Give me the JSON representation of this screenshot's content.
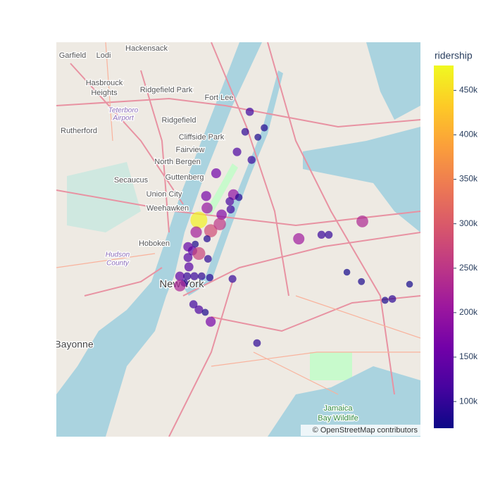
{
  "chart_data": {
    "type": "scattermapbox",
    "lonlim": [
      -74.144,
      -73.743
    ],
    "latlim": [
      40.596,
      40.891
    ],
    "lat": [
      40.839,
      40.827,
      40.824,
      40.82,
      40.809,
      40.803,
      40.793,
      40.777,
      40.776,
      40.775,
      40.772,
      40.767,
      40.766,
      40.762,
      40.758,
      40.75,
      40.755,
      40.749,
      40.744,
      40.74,
      40.738,
      40.735,
      40.733,
      40.729,
      40.73,
      40.723,
      40.716,
      40.716,
      40.716,
      40.716,
      40.715,
      40.711,
      40.709,
      40.714,
      40.695,
      40.691,
      40.689,
      40.682,
      40.666,
      40.744,
      40.747,
      40.747,
      40.757,
      40.719,
      40.712,
      40.71,
      40.698,
      40.699
    ],
    "lon": [
      -73.931,
      -73.915,
      -73.936,
      -73.922,
      -73.945,
      -73.929,
      -73.968,
      -73.949,
      -73.979,
      -73.943,
      -73.953,
      -73.978,
      -73.952,
      -73.962,
      -73.987,
      -73.974,
      -73.964,
      -73.99,
      -73.978,
      -73.991,
      -73.999,
      -73.994,
      -73.987,
      -73.977,
      -73.999,
      -73.998,
      -74.008,
      -74.0,
      -73.992,
      -73.984,
      -73.975,
      -74.003,
      -74.008,
      -73.95,
      -73.993,
      -73.987,
      -73.98,
      -73.974,
      -73.923,
      -73.877,
      -73.852,
      -73.844,
      -73.807,
      -73.824,
      -73.808,
      -73.755,
      -73.782,
      -73.774
    ],
    "values": [
      110000,
      85000,
      95000,
      80000,
      120000,
      105000,
      160000,
      190000,
      165000,
      90000,
      115000,
      200000,
      110000,
      175000,
      470000,
      280000,
      250000,
      215000,
      85000,
      80000,
      145000,
      140000,
      270000,
      95000,
      130000,
      135000,
      140000,
      100000,
      105000,
      95000,
      90000,
      95000,
      225000,
      100000,
      110000,
      120000,
      80000,
      165000,
      95000,
      210000,
      105000,
      100000,
      230000,
      75000,
      80000,
      75000,
      80000,
      95000
    ],
    "colorbar_title": "ridership",
    "clim": [
      70000,
      478000
    ],
    "cticks": [
      {
        "value": 100000,
        "label": "100k"
      },
      {
        "value": 150000,
        "label": "150k"
      },
      {
        "value": 200000,
        "label": "200k"
      },
      {
        "value": 250000,
        "label": "250k"
      },
      {
        "value": 300000,
        "label": "300k"
      },
      {
        "value": 350000,
        "label": "350k"
      },
      {
        "value": 400000,
        "label": "400k"
      },
      {
        "value": 450000,
        "label": "450k"
      }
    ],
    "colorscale": [
      "#0d0887",
      "#46039f",
      "#7201a8",
      "#9c179e",
      "#bd3786",
      "#d8576b",
      "#ed7953",
      "#fb9f3a",
      "#fdca26",
      "#f0f921"
    ],
    "opacity": 0.7
  },
  "map_labels": [
    "Garfield",
    "Lodi",
    "Hackensack",
    "Hasbrouck",
    "Heights",
    "Ridgefield Park",
    "Teterboro",
    "Airport",
    "Rutherford",
    "Ridgefield",
    "Cliffside Park",
    "Fort Lee",
    "Fairview",
    "North Bergen",
    "Secaucus",
    "Guttenberg",
    "Union City",
    "Weehawken",
    "Hoboken",
    "Hudson",
    "County",
    "New York",
    "Bayonne",
    "Jamaica",
    "Bay Wildlife"
  ],
  "attribution": "© OpenStreetMap contributors"
}
